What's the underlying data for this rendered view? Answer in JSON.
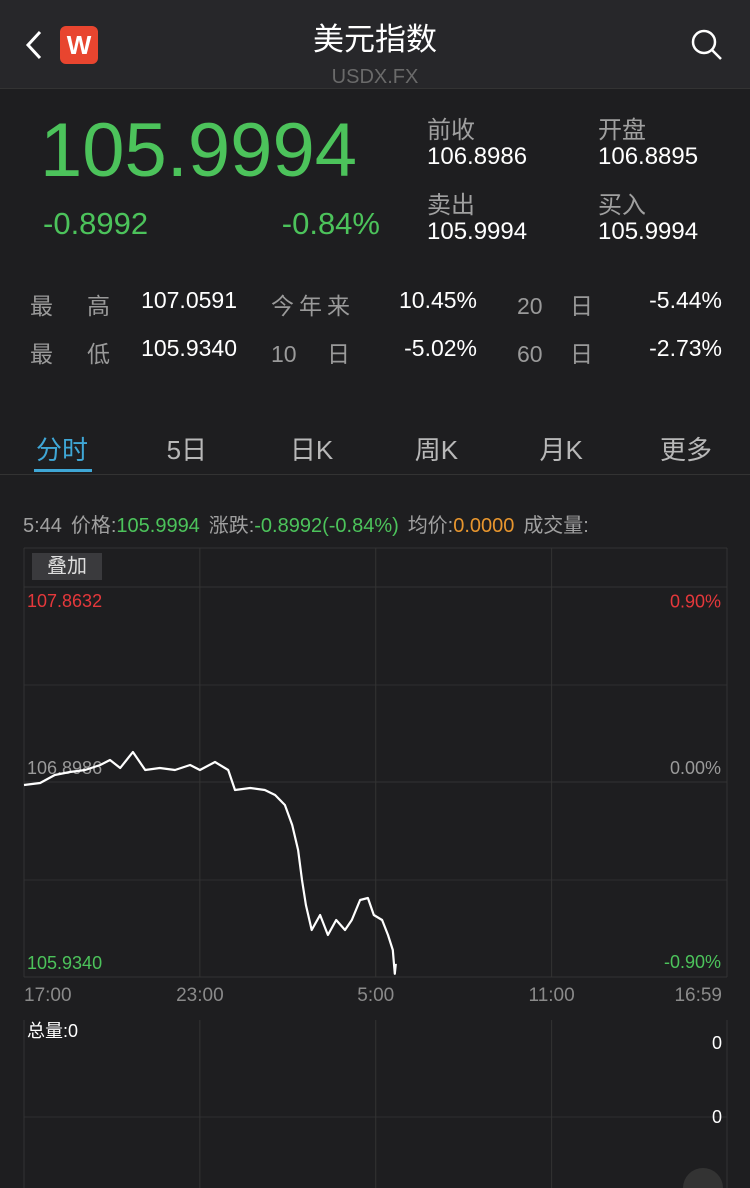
{
  "header": {
    "title": "美元指数",
    "subtitle": "USDX.FX",
    "logo": "W"
  },
  "quote": {
    "price": "105.9994",
    "change": "-0.8992",
    "change_pct": "-0.84%",
    "fields": [
      {
        "label": "前收",
        "value": "106.8986"
      },
      {
        "label": "开盘",
        "value": "106.8895"
      },
      {
        "label": "卖出",
        "value": "105.9994"
      },
      {
        "label": "买入",
        "value": "105.9994"
      }
    ]
  },
  "stats": {
    "rows": [
      [
        "最 高",
        "107.0591",
        "今年来",
        "10.45%",
        "20 日",
        "-5.44%"
      ],
      [
        "最 低",
        "105.9340",
        "10 日",
        "-5.02%",
        "60 日",
        "-2.73%"
      ]
    ]
  },
  "tabs": {
    "items": [
      "分时",
      "5日",
      "日K",
      "周K",
      "月K",
      "更多"
    ],
    "active": 0
  },
  "info": {
    "time": "5:44",
    "price_label": "价格:",
    "price": "105.9994",
    "change_label": "涨跌:",
    "change": "-0.8992(-0.84%)",
    "avg_label": "均价:",
    "avg": "0.0000",
    "volume_label": "成交量:"
  },
  "chart_data": {
    "type": "line",
    "overlay_button": "叠加",
    "x": [
      0,
      33,
      63,
      94,
      125,
      156,
      176,
      197,
      223,
      248,
      278,
      309,
      340,
      360,
      391,
      418,
      432,
      463,
      493,
      514,
      534,
      549,
      561,
      569,
      577,
      589,
      606,
      622,
      639,
      657,
      671,
      688,
      704,
      716,
      733,
      745,
      755,
      759,
      761
    ],
    "series": [
      {
        "color": "#ffffff",
        "values": [
          106.8838,
          106.8937,
          106.9332,
          106.9481,
          106.958,
          106.9827,
          107.0074,
          106.9679,
          107.047,
          106.958,
          106.9679,
          106.958,
          106.9827,
          106.958,
          106.9975,
          106.958,
          106.859,
          106.8689,
          106.859,
          106.8343,
          106.7848,
          106.6859,
          106.5622,
          106.4138,
          106.2901,
          106.1664,
          106.2406,
          106.1417,
          106.2159,
          106.1664,
          106.2159,
          106.3149,
          106.3248,
          106.2406,
          106.2159,
          106.1417,
          106.0675,
          105.95,
          105.9994
        ]
      }
    ],
    "xlim": [
      0,
      1439
    ],
    "xticks": [
      {
        "value": 0,
        "label": "17:00"
      },
      {
        "value": 360,
        "label": "23:00"
      },
      {
        "value": 720,
        "label": "5:00"
      },
      {
        "value": 1080,
        "label": "11:00"
      },
      {
        "value": 1439,
        "label": "16:59"
      }
    ],
    "ylim": [
      105.934,
      107.8632
    ],
    "yticks": [
      107.8632,
      106.8986,
      {
        "value": 105.934,
        "label": "105.9340"
      }
    ],
    "y2lim": [
      -0.9024,
      0.9024
    ],
    "y2ticks": [
      {
        "value": 0.9,
        "label": "0.90%"
      },
      {
        "value": 0,
        "label": "0.00%"
      },
      {
        "value": -0.9,
        "label": "-0.90%"
      }
    ],
    "grid": true,
    "up_color": "#e5383b",
    "down_color": "#4cc35b",
    "flat_color": "#9a9a9a"
  },
  "volume": {
    "title": "总量:0",
    "axis_labels": [
      0,
      0
    ]
  }
}
